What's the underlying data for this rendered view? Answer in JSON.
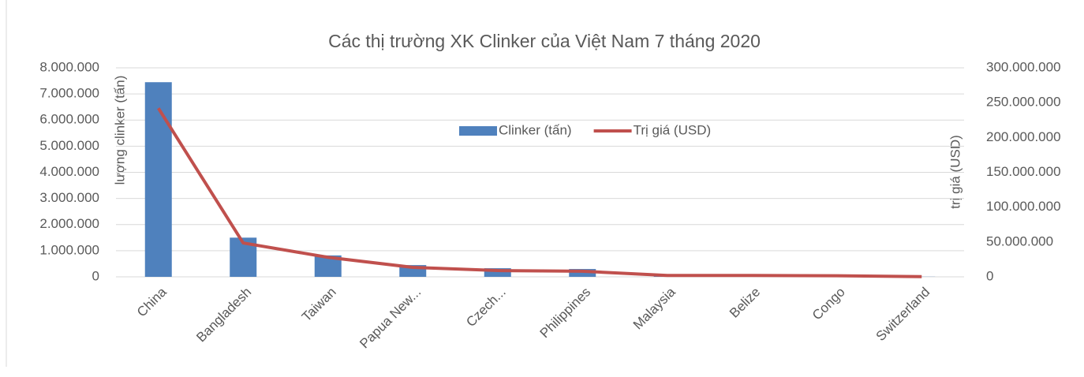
{
  "chart_data": {
    "type": "bar_line",
    "title": "Các thị trường XK Clinker của Việt Nam 7 tháng 2020",
    "ylabel": "lượng clinker (tấn)",
    "y2label": "trị giá (USD)",
    "categories": [
      "China",
      "Bangladesh",
      "Taiwan",
      "Papua New...",
      "Czech...",
      "Philippines",
      "Malaysia",
      "Belize",
      "Congo",
      "Switzerland"
    ],
    "series": [
      {
        "name": "Clinker (tấn)",
        "type": "bar",
        "color": "#4f81bd",
        "values": [
          7450000,
          1500000,
          820000,
          450000,
          330000,
          300000,
          60000,
          20000,
          15000,
          5000
        ]
      },
      {
        "name": "Trị giá (USD)",
        "type": "line",
        "axis": "y2",
        "color": "#c0504d",
        "values": [
          242000000,
          48600000,
          28000000,
          13600000,
          9000000,
          8000000,
          2000000,
          2000000,
          1500000,
          300000
        ]
      }
    ],
    "ylim": [
      0,
      8000000
    ],
    "yticks": [
      0,
      {
        "value": 1000000,
        "label": "1.000.000"
      },
      {
        "value": 2000000,
        "label": "2.000.000"
      },
      {
        "value": 3000000,
        "label": "3.000.000"
      },
      {
        "value": 4000000,
        "label": "4.000.000"
      },
      {
        "value": 5000000,
        "label": "5.000.000"
      },
      {
        "value": 6000000,
        "label": "6.000.000"
      },
      {
        "value": 7000000,
        "label": "7.000.000"
      },
      {
        "value": 8000000,
        "label": "8.000.000"
      }
    ],
    "y2lim": [
      0,
      300000000
    ],
    "y2ticks": [
      0,
      {
        "value": 50000000,
        "label": "50.000.000"
      },
      {
        "value": 100000000,
        "label": "100.000.000"
      },
      {
        "value": 150000000,
        "label": "150.000.000"
      },
      {
        "value": 200000000,
        "label": "200.000.000"
      },
      {
        "value": 250000000,
        "label": "250.000.000"
      },
      {
        "value": 300000000,
        "label": "300.000.000"
      }
    ],
    "grid": true
  }
}
